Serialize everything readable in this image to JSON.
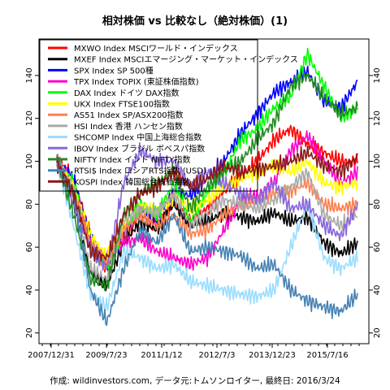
{
  "chart_data": {
    "type": "line",
    "title": "相対株価 vs 比較なし（絶対株価）(1)",
    "footer": "作成: wildinvestors.com, データ元:トムソンロイター, 最終日: 2016/3/24",
    "x_ticks": [
      "2007/12/31",
      "2009/7/23",
      "2011/1/12",
      "2012/7/3",
      "2013/12/23",
      "2015/7/16"
    ],
    "y_ticks": [
      20,
      40,
      60,
      80,
      100,
      120,
      140
    ],
    "ylim": [
      15,
      157
    ],
    "legend_position": "top-left",
    "series": [
      {
        "name": "MXWO Index MSCIワールド・インデックス",
        "color": "#ff0000",
        "values": [
          100,
          92,
          65,
          50,
          64,
          75,
          70,
          82,
          72,
          78,
          86,
          93,
          100,
          110,
          115,
          108,
          104,
          100,
          100
        ]
      },
      {
        "name": "MXEF Index MSCIエマージング・マーケット・インデックス",
        "color": "#000000",
        "values": [
          100,
          80,
          48,
          42,
          62,
          72,
          68,
          80,
          70,
          72,
          76,
          74,
          72,
          76,
          72,
          74,
          62,
          57,
          62
        ]
      },
      {
        "name": "SPX Index SP 500種",
        "color": "#0000ff",
        "values": [
          100,
          92,
          65,
          50,
          66,
          78,
          74,
          86,
          84,
          92,
          100,
          113,
          122,
          132,
          137,
          142,
          128,
          125,
          137
        ]
      },
      {
        "name": "TPX Index TOPIX (東証株価指数)",
        "color": "#ff00cc",
        "values": [
          100,
          88,
          62,
          55,
          62,
          64,
          58,
          55,
          52,
          55,
          68,
          82,
          84,
          90,
          105,
          112,
          100,
          90,
          95
        ]
      },
      {
        "name": "DAX Index ドイツ DAX指数",
        "color": "#00ff00",
        "values": [
          100,
          90,
          60,
          50,
          68,
          80,
          75,
          90,
          72,
          85,
          95,
          110,
          115,
          125,
          130,
          150,
          135,
          120,
          125
        ]
      },
      {
        "name": "UKX Index FTSE100指数",
        "color": "#ffff00",
        "values": [
          100,
          88,
          66,
          55,
          70,
          80,
          76,
          84,
          78,
          82,
          88,
          92,
          95,
          98,
          95,
          100,
          90,
          88,
          90
        ]
      },
      {
        "name": "AS51 Index SP/ASX200指数",
        "color": "#ff7f50",
        "values": [
          100,
          85,
          62,
          52,
          68,
          75,
          70,
          75,
          66,
          68,
          75,
          80,
          82,
          85,
          86,
          90,
          80,
          78,
          80
        ]
      },
      {
        "name": "HSI Index 香港 ハンセン指数",
        "color": "#aaaaaa",
        "values": [
          100,
          85,
          50,
          45,
          72,
          78,
          76,
          85,
          70,
          76,
          82,
          80,
          78,
          82,
          88,
          95,
          75,
          70,
          75
        ]
      },
      {
        "name": "SHCOMP Index 中国上海総合指数",
        "color": "#99ddff",
        "values": [
          100,
          70,
          38,
          32,
          58,
          55,
          50,
          52,
          44,
          42,
          40,
          38,
          37,
          40,
          60,
          80,
          55,
          50,
          55
        ]
      },
      {
        "name": "IBOV Index ブラジル ボベスパ指数",
        "color": "#8866dd",
        "values": [
          100,
          80,
          60,
          50,
          90,
          105,
          100,
          100,
          88,
          95,
          90,
          85,
          82,
          90,
          78,
          80,
          70,
          65,
          80
        ]
      },
      {
        "name": "NIFTY Index インド NIFTY指数",
        "color": "#228b22",
        "values": [
          100,
          75,
          45,
          42,
          75,
          85,
          90,
          95,
          78,
          88,
          95,
          100,
          110,
          118,
          135,
          140,
          130,
          122,
          125
        ]
      },
      {
        "name": "RTSI$ Index ロシアRTS指数 (USD)",
        "color": "#4682b4",
        "values": [
          100,
          85,
          40,
          25,
          50,
          68,
          62,
          75,
          58,
          60,
          58,
          56,
          50,
          52,
          40,
          35,
          32,
          30,
          38
        ]
      },
      {
        "name": "KOSPI Index 韓国総合株価指数",
        "color": "#8b1a1a",
        "values": [
          100,
          85,
          58,
          55,
          75,
          85,
          88,
          95,
          88,
          92,
          98,
          95,
          96,
          98,
          100,
          104,
          98,
          95,
          102
        ]
      }
    ]
  }
}
